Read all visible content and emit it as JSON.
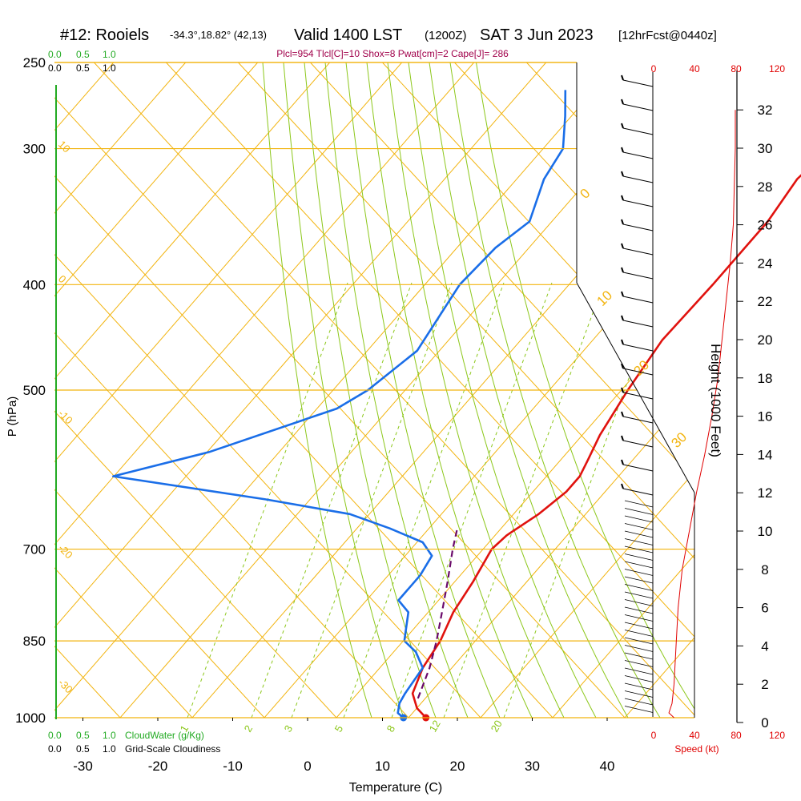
{
  "header": {
    "station": "#12: Rooiels",
    "coords": "-34.3°,18.82° (42,13)",
    "valid": "Valid 1400 LST",
    "zulu": "(1200Z)",
    "date": "SAT 3 Jun 2023",
    "forecast": "[12hrFcst@0440z]",
    "indices": "Plcl=954 Tlcl[C]=10 Shox=8 Pwat[cm]=2 Cape[J]= 286"
  },
  "colors": {
    "temperature": "#e0120e",
    "dewpoint": "#1a6ee8",
    "parcel": "#6a0a6a",
    "isobar": "#f2b40f",
    "dry_adiabat": "#f2b40f",
    "moist_adiabat": "#8cc71a",
    "mixing_ratio": "#8cc71a",
    "cloud_axis": "#22aa22",
    "wind_axis": "#e00000"
  },
  "cloud_scale": {
    "cloudwater_ticks": [
      "0.0",
      "0.5",
      "1.0"
    ],
    "cloudiness_ticks": [
      "0.0",
      "0.5",
      "1.0"
    ],
    "cloudwater_label": "CloudWater (g/Kg)",
    "cloudiness_label": "Grid-Scale Cloudiness"
  },
  "wind_scale": {
    "ticks": [
      "0",
      "40",
      "80",
      "120"
    ],
    "label": "Speed (kt)"
  },
  "chart_data": {
    "type": "skew-t",
    "xlabel": "Temperature (C)",
    "ylabel": "P (hPa)",
    "y2label": "Height (1000 Feet)",
    "x_ticks": [
      -30,
      -20,
      -10,
      0,
      10,
      20,
      30,
      40
    ],
    "p_ticks": [
      250,
      300,
      400,
      500,
      700,
      850,
      1000
    ],
    "height_ticks": [
      0,
      2,
      4,
      6,
      8,
      10,
      12,
      14,
      16,
      18,
      20,
      22,
      24,
      26,
      28,
      30,
      32
    ],
    "dry_adiabat_labels": [
      "10",
      "0",
      "-10",
      "-20",
      "-30"
    ],
    "moist_adiabat_labels": [
      "0",
      "10",
      "20",
      "30"
    ],
    "mixing_ratio_labels": [
      "1",
      "2",
      "3",
      "5",
      "8",
      "12",
      "20"
    ],
    "temperature": [
      {
        "p": 1000,
        "t": 15.8
      },
      {
        "p": 980,
        "t": 13.5
      },
      {
        "p": 950,
        "t": 11.2
      },
      {
        "p": 900,
        "t": 9.6
      },
      {
        "p": 850,
        "t": 8.8
      },
      {
        "p": 800,
        "t": 7.2
      },
      {
        "p": 750,
        "t": 6.3
      },
      {
        "p": 700,
        "t": 5.0
      },
      {
        "p": 680,
        "t": 5.4
      },
      {
        "p": 650,
        "t": 7.2
      },
      {
        "p": 620,
        "t": 8.3
      },
      {
        "p": 600,
        "t": 8.3
      },
      {
        "p": 580,
        "t": 7.5
      },
      {
        "p": 550,
        "t": 6.2
      },
      {
        "p": 500,
        "t": 4.7
      },
      {
        "p": 450,
        "t": 3.5
      },
      {
        "p": 400,
        "t": 3.8
      },
      {
        "p": 350,
        "t": 3.8
      },
      {
        "p": 320,
        "t": 2.8
      },
      {
        "p": 300,
        "t": 3.5
      },
      {
        "p": 280,
        "t": 6.5
      },
      {
        "p": 265,
        "t": 10.0
      }
    ],
    "dewpoint": [
      {
        "p": 1000,
        "t": 12.8
      },
      {
        "p": 990,
        "t": 11.5
      },
      {
        "p": 970,
        "t": 10.6
      },
      {
        "p": 950,
        "t": 10.2
      },
      {
        "p": 900,
        "t": 9.6
      },
      {
        "p": 870,
        "t": 6.8
      },
      {
        "p": 850,
        "t": 4.0
      },
      {
        "p": 800,
        "t": 1.2
      },
      {
        "p": 780,
        "t": -1.5
      },
      {
        "p": 740,
        "t": -1.5
      },
      {
        "p": 710,
        "t": -2.2
      },
      {
        "p": 690,
        "t": -5.0
      },
      {
        "p": 670,
        "t": -11.0
      },
      {
        "p": 650,
        "t": -18.0
      },
      {
        "p": 630,
        "t": -31.0
      },
      {
        "p": 600,
        "t": -54.0
      },
      {
        "p": 570,
        "t": -44.0
      },
      {
        "p": 520,
        "t": -32.0
      },
      {
        "p": 500,
        "t": -30.0
      },
      {
        "p": 460,
        "t": -28.0
      },
      {
        "p": 400,
        "t": -30.0
      },
      {
        "p": 370,
        "t": -29.5
      },
      {
        "p": 350,
        "t": -28.0
      },
      {
        "p": 320,
        "t": -31.0
      },
      {
        "p": 300,
        "t": -32.0
      },
      {
        "p": 280,
        "t": -35.5
      },
      {
        "p": 265,
        "t": -38.5
      }
    ],
    "parcel": [
      {
        "p": 960,
        "t": 12.5
      },
      {
        "p": 900,
        "t": 10.5
      },
      {
        "p": 850,
        "t": 8.3
      },
      {
        "p": 800,
        "t": 5.7
      },
      {
        "p": 750,
        "t": 2.9
      },
      {
        "p": 700,
        "t": -0.2
      },
      {
        "p": 670,
        "t": -2.0
      }
    ],
    "wind_profile_kt": [
      {
        "h": 0.5,
        "s": 15
      },
      {
        "h": 1.0,
        "s": 18
      },
      {
        "h": 2.0,
        "s": 20
      },
      {
        "h": 4.0,
        "s": 22
      },
      {
        "h": 6.0,
        "s": 24
      },
      {
        "h": 8.0,
        "s": 28
      },
      {
        "h": 10.0,
        "s": 35
      },
      {
        "h": 12.0,
        "s": 42
      },
      {
        "h": 14.0,
        "s": 50
      },
      {
        "h": 16.0,
        "s": 57
      },
      {
        "h": 18.0,
        "s": 63
      },
      {
        "h": 20.0,
        "s": 67
      },
      {
        "h": 22.0,
        "s": 71
      },
      {
        "h": 24.0,
        "s": 75
      },
      {
        "h": 26.0,
        "s": 78
      },
      {
        "h": 28.0,
        "s": 79
      },
      {
        "h": 30.0,
        "s": 80
      },
      {
        "h": 32.0,
        "s": 80
      }
    ]
  }
}
